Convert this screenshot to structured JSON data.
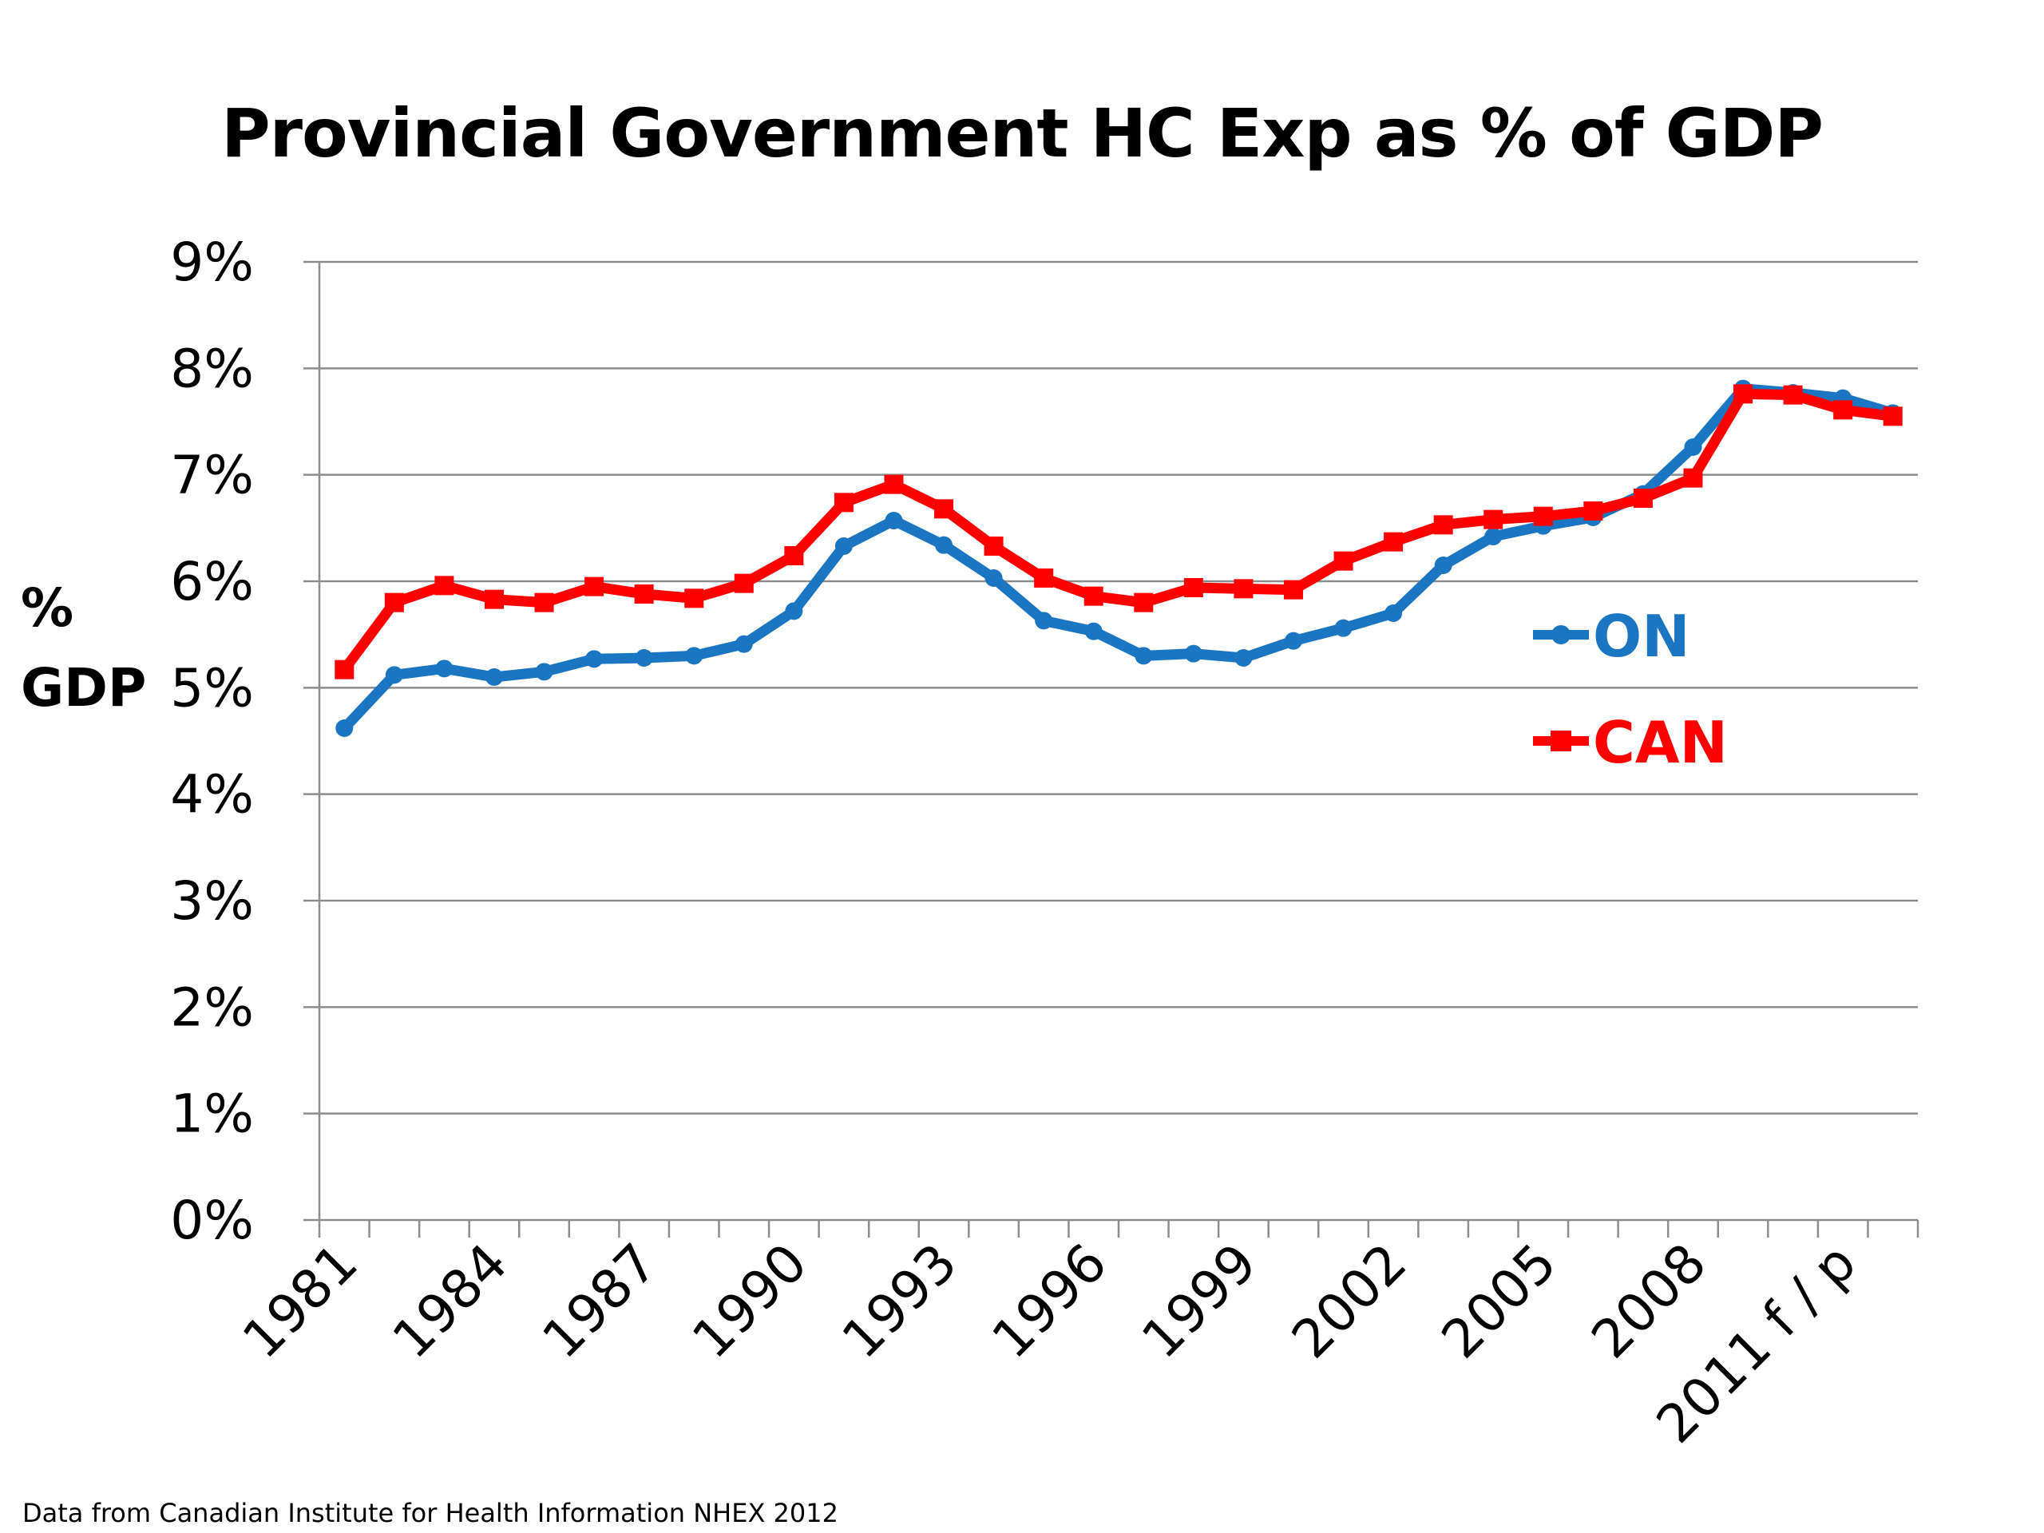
{
  "chart_data": {
    "type": "line",
    "title": "Provincial Government HC Exp as % of GDP",
    "ylabel": "% GDP",
    "ylabel_lines": [
      "%",
      "GDP"
    ],
    "xlabel": "",
    "source_note": "Data from Canadian Institute for Health Information NHEX 2012",
    "ylim": [
      0,
      9
    ],
    "y_ticks": [
      "0%",
      "1%",
      "2%",
      "3%",
      "4%",
      "5%",
      "6%",
      "7%",
      "8%",
      "9%"
    ],
    "grid": true,
    "legend_position": "right",
    "x": [
      "1981",
      "1982",
      "1983",
      "1984",
      "1985",
      "1986",
      "1987",
      "1988",
      "1989",
      "1990",
      "1991",
      "1992",
      "1993",
      "1994",
      "1995",
      "1996",
      "1997",
      "1998",
      "1999",
      "2000",
      "2001",
      "2002",
      "2003",
      "2004",
      "2005",
      "2006",
      "2007",
      "2008",
      "2009",
      "2010",
      "2011",
      "2012"
    ],
    "x_tick_labels": [
      {
        "index": 0,
        "label": "1981"
      },
      {
        "index": 3,
        "label": "1984"
      },
      {
        "index": 6,
        "label": "1987"
      },
      {
        "index": 9,
        "label": "1990"
      },
      {
        "index": 12,
        "label": "1993"
      },
      {
        "index": 15,
        "label": "1996"
      },
      {
        "index": 18,
        "label": "1999"
      },
      {
        "index": 21,
        "label": "2002"
      },
      {
        "index": 24,
        "label": "2005"
      },
      {
        "index": 27,
        "label": "2008"
      },
      {
        "index": 30,
        "label": "2011 f / p"
      }
    ],
    "series": [
      {
        "name": "ON",
        "color": "#1a75c2",
        "marker": "circle",
        "values": [
          4.62,
          5.12,
          5.18,
          5.1,
          5.15,
          5.27,
          5.28,
          5.3,
          5.41,
          5.72,
          6.33,
          6.57,
          6.34,
          6.03,
          5.63,
          5.53,
          5.3,
          5.32,
          5.28,
          5.44,
          5.56,
          5.7,
          6.15,
          6.42,
          6.52,
          6.6,
          6.82,
          7.26,
          7.81,
          7.77,
          7.72,
          7.58
        ]
      },
      {
        "name": "CAN",
        "color": "#ff0000",
        "marker": "square",
        "values": [
          5.17,
          5.8,
          5.96,
          5.83,
          5.8,
          5.95,
          5.88,
          5.84,
          5.98,
          6.24,
          6.74,
          6.91,
          6.68,
          6.33,
          6.03,
          5.86,
          5.8,
          5.94,
          5.93,
          5.92,
          6.19,
          6.37,
          6.53,
          6.58,
          6.61,
          6.66,
          6.78,
          6.97,
          7.76,
          7.75,
          7.61,
          7.55
        ]
      }
    ]
  }
}
